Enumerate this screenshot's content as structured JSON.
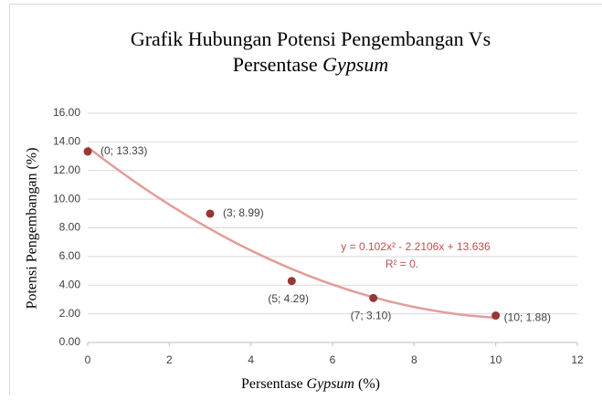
{
  "chart_data": {
    "type": "scatter",
    "title": {
      "line1": "Grafik Hubungan Potensi Pengembangan Vs",
      "line2": "Persentase",
      "line2_italic": "Gypsum"
    },
    "x_label": {
      "text": "Persentase",
      "italic": "Gypsum",
      "unit": "(%)"
    },
    "y_label": "Potensi Pengembangan (%)",
    "x": [
      0,
      3,
      5,
      7,
      10
    ],
    "values": [
      13.33,
      8.99,
      4.29,
      3.1,
      1.88
    ],
    "value_labels": [
      "(0; 13.33)",
      "(3; 8.99)",
      "(5; 4.29)",
      "(7; 3.10)",
      "(10; 1.88)"
    ],
    "color": "#953735",
    "xlim": [
      0,
      12
    ],
    "xticks": [
      0,
      2,
      4,
      6,
      8,
      10,
      12
    ],
    "ylim": [
      0,
      16
    ],
    "yticks": [
      {
        "value": 0,
        "label": "0.00"
      },
      {
        "value": 2,
        "label": "2.00"
      },
      {
        "value": 4,
        "label": "4.00"
      },
      {
        "value": 6,
        "label": "6.00"
      },
      {
        "value": 8,
        "label": "8.00"
      },
      {
        "value": 10,
        "label": "10.00"
      },
      {
        "value": 12,
        "label": "12.00"
      },
      {
        "value": 14,
        "label": "14.00"
      },
      {
        "value": 16,
        "label": "16.00"
      }
    ],
    "grid": true,
    "trendline": {
      "type": "polynomial",
      "coefficients": [
        0.102,
        -2.2106,
        13.636
      ],
      "color": "#e39c9a",
      "label": "y = 0.102x² - 2.2106x + 13.636",
      "r2_label": "R² = 0.",
      "label_color": "#c0504d"
    }
  }
}
